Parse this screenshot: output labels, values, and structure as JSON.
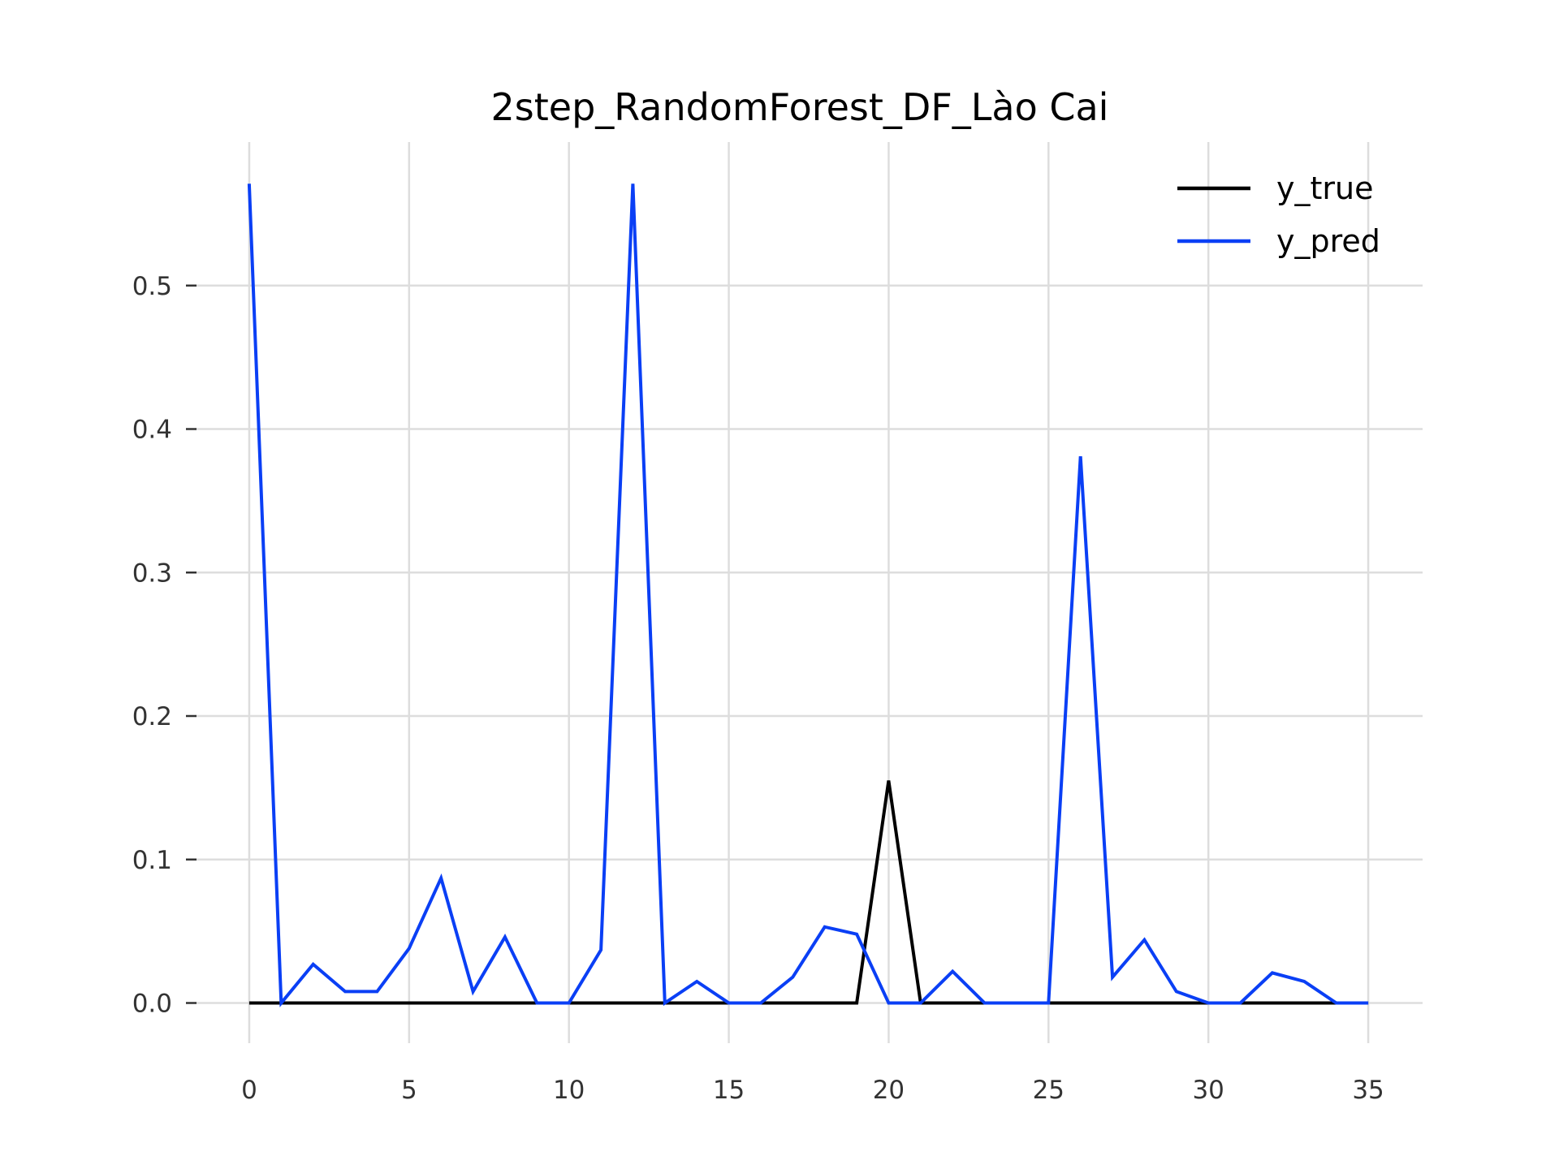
{
  "chart_data": {
    "type": "line",
    "title": "2step_RandomForest_DF_Lào Cai",
    "xlabel": "",
    "ylabel": "",
    "xlim": [
      -1.7,
      36.7
    ],
    "ylim": [
      -0.028,
      0.6
    ],
    "x_ticks": [
      0,
      5,
      10,
      15,
      20,
      25,
      30,
      35
    ],
    "y_ticks": [
      0.0,
      0.1,
      0.2,
      0.3,
      0.4,
      0.5
    ],
    "y_tick_labels": [
      "0.0",
      "0.1",
      "0.2",
      "0.3",
      "0.4",
      "0.5"
    ],
    "grid": true,
    "legend_position": "top-right",
    "x": [
      0,
      1,
      2,
      3,
      4,
      5,
      6,
      7,
      8,
      9,
      10,
      11,
      12,
      13,
      14,
      15,
      16,
      17,
      18,
      19,
      20,
      21,
      22,
      23,
      24,
      25,
      26,
      27,
      28,
      29,
      30,
      31,
      32,
      33,
      34,
      35
    ],
    "series": [
      {
        "name": "y_true",
        "color": "#000000",
        "values": [
          0,
          0,
          0,
          0,
          0,
          0,
          0,
          0,
          0,
          0,
          0,
          0,
          0,
          0,
          0,
          0,
          0,
          0,
          0,
          0,
          0.155,
          0,
          0,
          0,
          0,
          0,
          0,
          0,
          0,
          0,
          0,
          0,
          0,
          0,
          0,
          0
        ]
      },
      {
        "name": "y_pred",
        "color": "#0a3ff5",
        "values": [
          0.571,
          0,
          0.027,
          0.008,
          0.008,
          0.038,
          0.087,
          0.008,
          0.046,
          0,
          0,
          0.037,
          0.571,
          0,
          0.015,
          0,
          0,
          0.018,
          0.053,
          0.048,
          0,
          0,
          0.022,
          0,
          0,
          0,
          0.381,
          0.018,
          0.044,
          0.008,
          0,
          0,
          0.021,
          0.015,
          0,
          0
        ]
      }
    ]
  }
}
